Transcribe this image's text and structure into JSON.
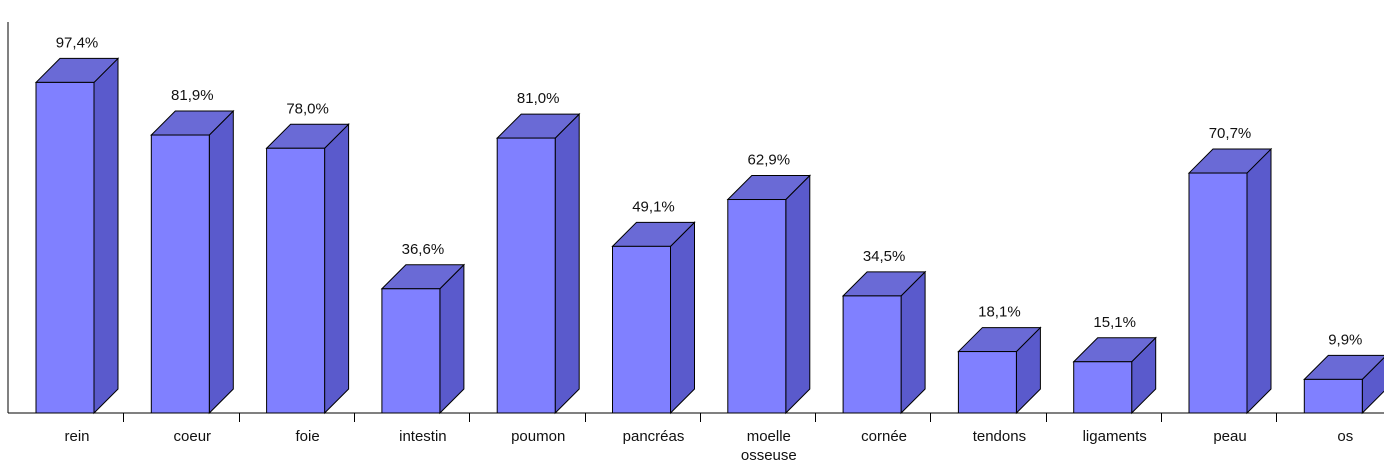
{
  "chart_data": {
    "type": "bar",
    "title": "",
    "xlabel": "",
    "ylabel": "",
    "ylim": [
      0,
      100
    ],
    "categories": [
      "rein",
      "coeur",
      "foie",
      "intestin",
      "poumon",
      "pancréas",
      "moelle osseuse",
      "cornée",
      "tendons",
      "ligaments",
      "peau",
      "os"
    ],
    "values": [
      97.4,
      81.9,
      78.0,
      36.6,
      81.0,
      49.1,
      62.9,
      34.5,
      18.1,
      15.1,
      70.7,
      9.9
    ],
    "value_labels": [
      "97,4%",
      "81,9%",
      "78,0%",
      "36,6%",
      "81,0%",
      "49,1%",
      "62,9%",
      "34,5%",
      "18,1%",
      "15,1%",
      "70,7%",
      "9,9%"
    ],
    "grid": false,
    "legend": "none",
    "style": "3d",
    "colors": {
      "front": "#8080ff",
      "side": "#5a5acc",
      "top": "#6a6ad6",
      "outline": "#000000"
    }
  }
}
